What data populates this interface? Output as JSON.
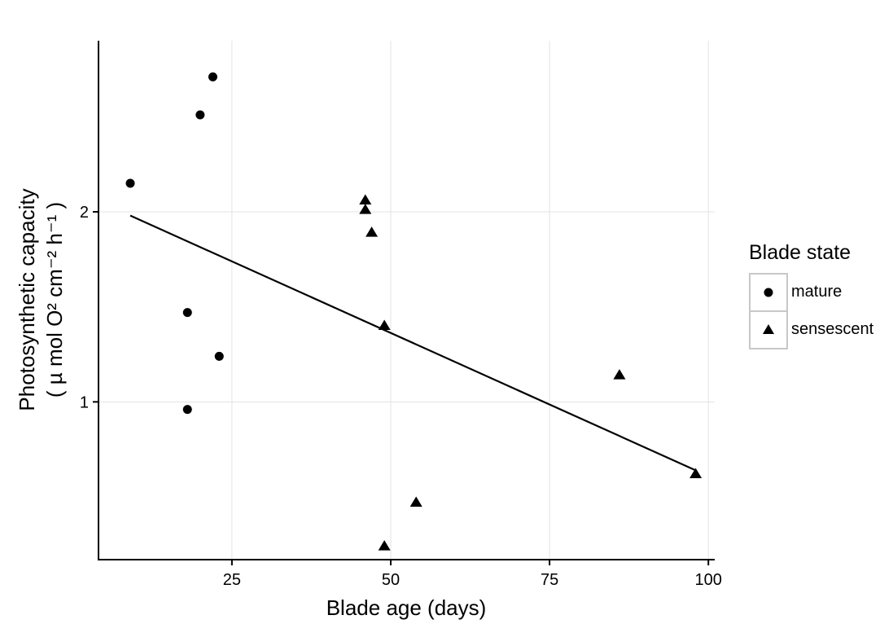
{
  "chart_data": {
    "type": "scatter",
    "xlabel": "Blade age (days)",
    "ylabel_line1": "Photosynthetic capacity",
    "ylabel_line2": "( µ mol O² cm⁻² h⁻¹ )",
    "xlim": [
      4,
      101
    ],
    "ylim": [
      0.17,
      2.9
    ],
    "x_ticks": [
      25,
      50,
      75,
      100
    ],
    "y_ticks": [
      1,
      2
    ],
    "grid": true,
    "legend": {
      "title": "Blade state",
      "placement": "right",
      "entries": [
        "mature",
        "sensescent"
      ]
    },
    "series": [
      {
        "name": "mature",
        "marker": "circle",
        "points": [
          {
            "x": 9,
            "y": 2.15
          },
          {
            "x": 18,
            "y": 1.47
          },
          {
            "x": 18,
            "y": 0.96
          },
          {
            "x": 20,
            "y": 2.51
          },
          {
            "x": 22,
            "y": 2.71
          },
          {
            "x": 23,
            "y": 1.24
          }
        ]
      },
      {
        "name": "sensescent",
        "marker": "triangle",
        "points": [
          {
            "x": 46,
            "y": 2.06
          },
          {
            "x": 46,
            "y": 2.01
          },
          {
            "x": 47,
            "y": 1.89
          },
          {
            "x": 49,
            "y": 1.4
          },
          {
            "x": 49,
            "y": 0.24
          },
          {
            "x": 54,
            "y": 0.47
          },
          {
            "x": 86,
            "y": 1.14
          },
          {
            "x": 98,
            "y": 0.62
          }
        ]
      }
    ],
    "fit_line": {
      "x": [
        9,
        98
      ],
      "y": [
        1.98,
        0.64
      ]
    }
  }
}
